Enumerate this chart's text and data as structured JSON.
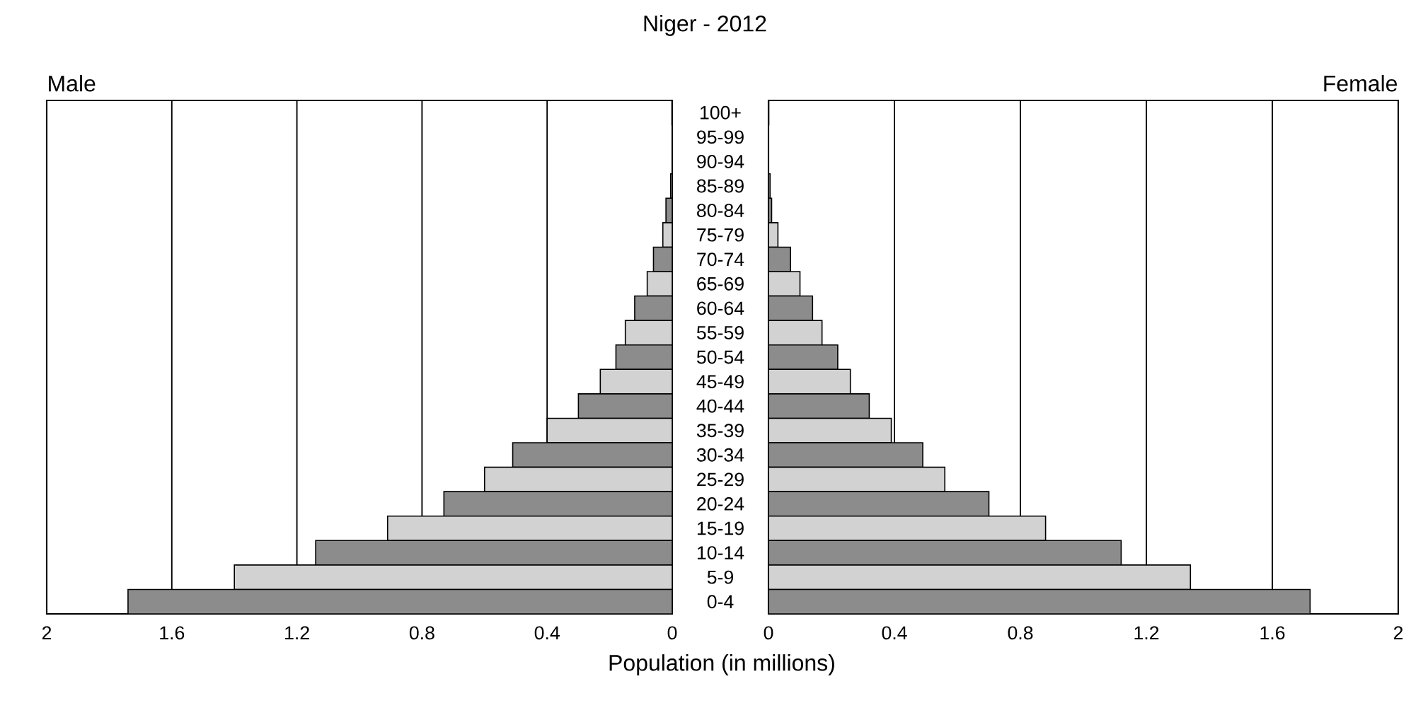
{
  "chart_data": [
    {
      "type": "bar",
      "orientation": "horizontal",
      "title": "Niger - 2012",
      "subtitle": "Male",
      "xlabel": "Population (in millions)",
      "categories": [
        "100+",
        "95-99",
        "90-94",
        "85-89",
        "80-84",
        "75-79",
        "70-74",
        "65-69",
        "60-64",
        "55-59",
        "50-54",
        "45-49",
        "40-44",
        "35-39",
        "30-34",
        "25-29",
        "20-24",
        "15-19",
        "10-14",
        "5-9",
        "0-4"
      ],
      "values": [
        0.001,
        null,
        null,
        0.005,
        0.02,
        0.03,
        0.06,
        0.08,
        0.12,
        0.15,
        0.18,
        0.23,
        0.3,
        0.4,
        0.51,
        0.6,
        0.73,
        0.91,
        1.14,
        1.4,
        1.74
      ],
      "colors": [
        "#8c8c8c",
        "#d2d2d2",
        "#8c8c8c",
        "#d2d2d2",
        "#8c8c8c",
        "#d2d2d2",
        "#8c8c8c",
        "#d2d2d2",
        "#8c8c8c",
        "#d2d2d2",
        "#8c8c8c",
        "#d2d2d2",
        "#8c8c8c",
        "#d2d2d2",
        "#8c8c8c",
        "#d2d2d2",
        "#8c8c8c",
        "#d2d2d2",
        "#8c8c8c",
        "#d2d2d2",
        "#8c8c8c"
      ],
      "xlim": [
        2,
        0
      ],
      "xticks": [
        2,
        1.6,
        1.2,
        0.8,
        0.4,
        0
      ],
      "grid": "x"
    },
    {
      "type": "bar",
      "orientation": "horizontal",
      "subtitle": "Female",
      "tick_labels": "x",
      "values": [
        0.001,
        null,
        null,
        0.005,
        0.01,
        0.03,
        0.07,
        0.1,
        0.14,
        0.17,
        0.22,
        0.26,
        0.32,
        0.39,
        0.49,
        0.56,
        0.7,
        0.88,
        1.12,
        1.34,
        1.72
      ],
      "colors": [
        "#8c8c8c",
        "#d2d2d2",
        "#8c8c8c",
        "#d2d2d2",
        "#8c8c8c",
        "#d2d2d2",
        "#8c8c8c",
        "#d2d2d2",
        "#8c8c8c",
        "#d2d2d2",
        "#8c8c8c",
        "#d2d2d2",
        "#8c8c8c",
        "#d2d2d2",
        "#8c8c8c",
        "#d2d2d2",
        "#8c8c8c",
        "#d2d2d2",
        "#8c8c8c",
        "#d2d2d2",
        "#8c8c8c"
      ],
      "xlim": [
        0,
        2
      ],
      "xticks": [
        0,
        0.4,
        0.8,
        1.2,
        1.6,
        2
      ],
      "grid": "x"
    }
  ]
}
